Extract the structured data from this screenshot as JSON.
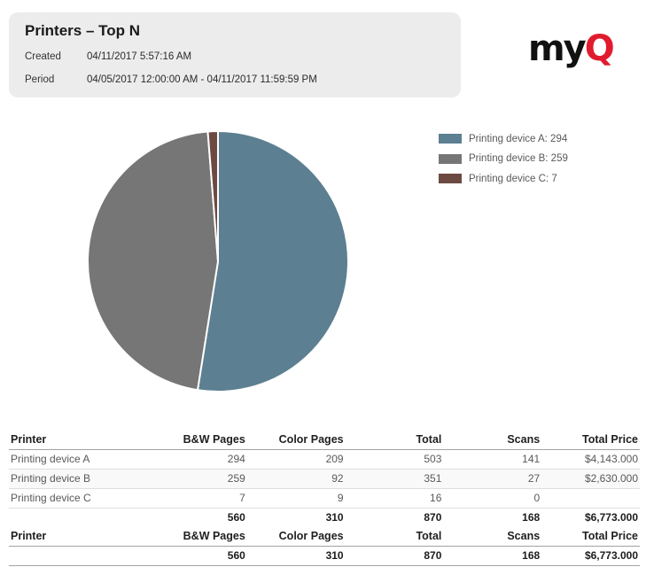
{
  "report": {
    "title": "Printers – Top N",
    "created_label": "Created",
    "created_value": "04/11/2017 5:57:16 AM",
    "period_label": "Period",
    "period_value": "04/05/2017 12:00:00 AM - 04/11/2017 11:59:59 PM"
  },
  "logo": {
    "prefix": "my",
    "suffix": "Q",
    "prefix_color": "#111111",
    "suffix_color": "#e11b2e"
  },
  "chart_data": {
    "type": "pie",
    "title": "",
    "labels": [
      "Printing device A",
      "Printing device B",
      "Printing device C"
    ],
    "values": [
      294,
      259,
      7
    ],
    "colors": [
      "#5c7f91",
      "#767676",
      "#6d4a41"
    ],
    "start_angle_deg": 0,
    "direction": "clockwise",
    "separator_color": "#ffffff",
    "legend_position": "right",
    "legend_labels": [
      "Printing device A: 294",
      "Printing device B: 259",
      "Printing device C: 7"
    ]
  },
  "table": {
    "columns": [
      "Printer",
      "B&W Pages",
      "Color Pages",
      "Total",
      "Scans",
      "Total Price"
    ],
    "rows": [
      [
        "Printing device A",
        "294",
        "209",
        "503",
        "141",
        "$4,143.000"
      ],
      [
        "Printing device B",
        "259",
        "92",
        "351",
        "27",
        "$2,630.000"
      ],
      [
        "Printing device C",
        "7",
        "9",
        "16",
        "0",
        ""
      ]
    ],
    "totals": [
      "",
      "560",
      "310",
      "870",
      "168",
      "$6,773.000"
    ]
  }
}
